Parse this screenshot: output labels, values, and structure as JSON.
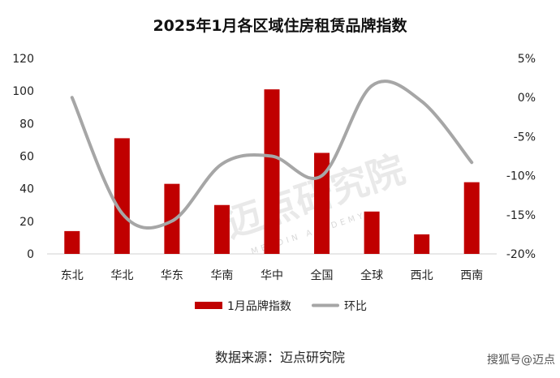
{
  "chart_data": {
    "type": "bar",
    "title": "2025年1月各区域住房租赁品牌指数",
    "categories": [
      "东北",
      "华北",
      "华东",
      "华南",
      "华中",
      "全国",
      "全球",
      "西北",
      "西南"
    ],
    "y_left": {
      "min": 0,
      "max": 120,
      "step": 20,
      "ticks": [
        "0",
        "20",
        "40",
        "60",
        "80",
        "100",
        "120"
      ]
    },
    "y_right": {
      "min": -20,
      "max": 5,
      "step": 5,
      "ticks": [
        "-20%",
        "-15%",
        "-10%",
        "-5%",
        "0%",
        "5%"
      ]
    },
    "series": [
      {
        "name": "1月品牌指数",
        "type": "bar",
        "axis": "left",
        "color": "#c00000",
        "values": [
          14,
          71,
          43,
          30,
          101,
          62,
          26,
          12,
          44
        ]
      },
      {
        "name": "环比",
        "type": "line",
        "axis": "right",
        "color": "#a6a6a6",
        "smooth": true,
        "values": [
          0.0,
          -14.8,
          -15.8,
          -8.5,
          -7.5,
          -10.0,
          1.5,
          -0.5,
          -8.3
        ]
      }
    ],
    "legend_position": "bottom",
    "grid": false
  },
  "source": "数据来源：迈点研究院",
  "watermark": {
    "main": "迈点研究院",
    "sub": "MEADIN ACADEMY"
  },
  "credit": "搜狐号@迈点"
}
